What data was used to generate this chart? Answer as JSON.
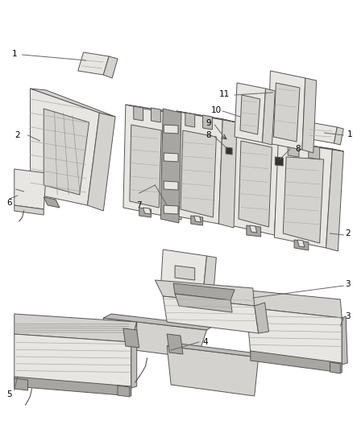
{
  "background_color": "#ffffff",
  "fig_width": 4.38,
  "fig_height": 5.33,
  "dpi": 100,
  "line_color": "#666666",
  "label_color": "#000000",
  "label_fontsize": 7.5,
  "edge_color": "#555555",
  "face_light": "#e8e6e2",
  "face_mid": "#d4d2ce",
  "face_dark": "#c0bebb",
  "face_darkest": "#a8a6a3"
}
